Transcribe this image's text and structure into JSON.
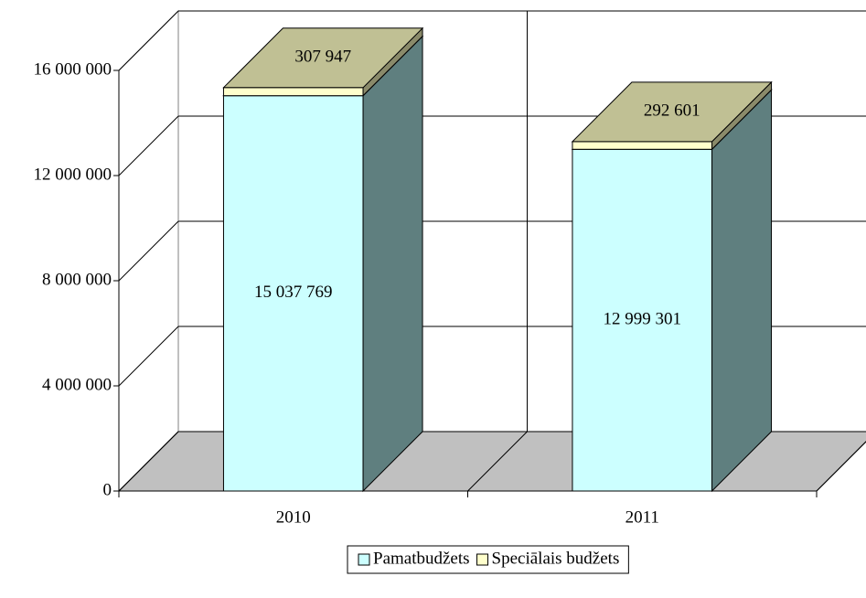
{
  "chart_data": {
    "type": "bar3d_stacked",
    "categories": [
      "2010",
      "2011"
    ],
    "series": [
      {
        "name": "Pamatbudžets",
        "color": "#ccffff",
        "values": [
          15037769,
          12999301
        ],
        "value_labels": [
          "15 037 769",
          "12 999 301"
        ]
      },
      {
        "name": "Speciālais budžets",
        "color": "#ffffcc",
        "values": [
          307947,
          292601
        ],
        "value_labels": [
          "307 947",
          "292 601"
        ]
      }
    ],
    "ylim": [
      0,
      16000000
    ],
    "yticks": [
      {
        "value": 0,
        "label": "0"
      },
      {
        "value": 4000000,
        "label": "4 000 000"
      },
      {
        "value": 8000000,
        "label": "8 000 000"
      },
      {
        "value": 12000000,
        "label": "12 000 000"
      },
      {
        "value": 16000000,
        "label": "16 000 000"
      }
    ],
    "grid": true
  }
}
